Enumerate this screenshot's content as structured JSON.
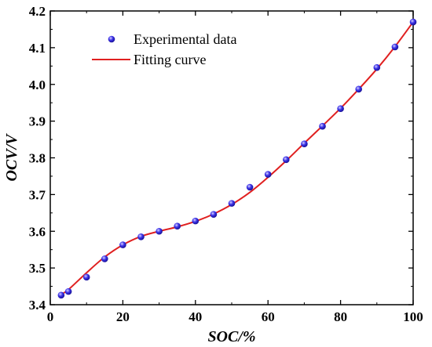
{
  "chart_data": {
    "type": "scatter",
    "xlabel": "SOC/%",
    "ylabel": "OCV/V",
    "xlim": [
      0,
      100
    ],
    "ylim": [
      3.4,
      4.2
    ],
    "x_ticks": [
      "0",
      "20",
      "40",
      "60",
      "80",
      "100"
    ],
    "y_ticks": [
      "3.4",
      "3.5",
      "3.6",
      "3.7",
      "3.8",
      "3.9",
      "4.0",
      "4.1",
      "4.2"
    ],
    "grid": false,
    "legend_position": "top-left",
    "series": [
      {
        "name": "Experimental data",
        "kind": "scatter",
        "color": "#2a1fd6",
        "x": [
          3,
          5,
          10,
          15,
          20,
          25,
          30,
          35,
          40,
          45,
          50,
          55,
          60,
          65,
          70,
          75,
          80,
          85,
          90,
          95,
          100
        ],
        "y": [
          3.426,
          3.436,
          3.475,
          3.525,
          3.563,
          3.585,
          3.6,
          3.614,
          3.628,
          3.646,
          3.676,
          3.72,
          3.755,
          3.795,
          3.838,
          3.886,
          3.934,
          3.987,
          4.046,
          4.102,
          4.17
        ]
      },
      {
        "name": "Fitting curve",
        "kind": "line",
        "color": "#e02020",
        "x": [
          3,
          5,
          10,
          15,
          20,
          25,
          30,
          35,
          40,
          45,
          50,
          55,
          60,
          65,
          70,
          75,
          80,
          85,
          90,
          95,
          100
        ],
        "y": [
          3.428,
          3.441,
          3.487,
          3.53,
          3.563,
          3.586,
          3.6,
          3.612,
          3.627,
          3.647,
          3.673,
          3.706,
          3.747,
          3.792,
          3.84,
          3.887,
          3.935,
          3.987,
          4.042,
          4.103,
          4.17
        ]
      }
    ]
  }
}
